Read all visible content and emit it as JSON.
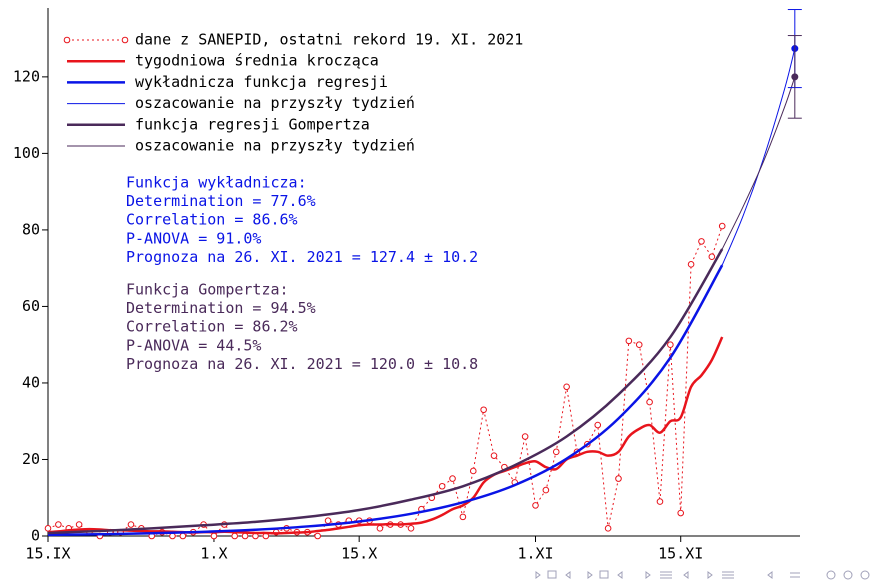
{
  "chart_data": {
    "type": "line",
    "xlim": [
      0,
      72.5
    ],
    "ylim": [
      0,
      138
    ],
    "xticks": [
      {
        "value": 0,
        "label": "15.IX"
      },
      {
        "value": 16,
        "label": "1.X"
      },
      {
        "value": 30,
        "label": "15.X"
      },
      {
        "value": 47,
        "label": "1.XI"
      },
      {
        "value": 61,
        "label": "15.XI"
      }
    ],
    "yticks": [
      0,
      20,
      40,
      60,
      80,
      100,
      120
    ],
    "series": [
      {
        "name": "dane z SANEPID, ostatni rekord 19. XI. 2021",
        "color": "#e8141c",
        "style": "dotted-markers",
        "x": [
          0,
          1,
          2,
          3,
          4,
          5,
          6,
          7,
          8,
          9,
          10,
          11,
          12,
          13,
          14,
          15,
          16,
          17,
          18,
          19,
          20,
          21,
          22,
          23,
          24,
          25,
          26,
          27,
          28,
          29,
          30,
          31,
          32,
          33,
          34,
          35,
          36,
          37,
          38,
          39,
          40,
          41,
          42,
          43,
          44,
          45,
          46,
          47,
          48,
          49,
          50,
          51,
          52,
          53,
          54,
          55,
          56,
          57,
          58,
          59,
          60,
          61,
          62,
          63,
          64,
          65
        ],
        "values": [
          2,
          3,
          2,
          3,
          1,
          0,
          1,
          1,
          3,
          2,
          0,
          1,
          0,
          0,
          1,
          3,
          0,
          3,
          0,
          0,
          0,
          0,
          1,
          2,
          1,
          1,
          0,
          4,
          3,
          4,
          4,
          4,
          2,
          3,
          3,
          2,
          7,
          10,
          13,
          15,
          5,
          17,
          33,
          21,
          18,
          14,
          26,
          8,
          12,
          22,
          39,
          22,
          24,
          29,
          2,
          15,
          51,
          50,
          35,
          9,
          50,
          6,
          71,
          77,
          73,
          81
        ]
      },
      {
        "name": "tygodniowa średnia krocząca",
        "color": "#e8141c",
        "style": "thick",
        "x": [
          0,
          1,
          2,
          3,
          4,
          5,
          6,
          7,
          8,
          9,
          10,
          11,
          12,
          13,
          14,
          15,
          16,
          17,
          18,
          19,
          20,
          21,
          22,
          23,
          24,
          25,
          26,
          27,
          28,
          29,
          30,
          31,
          32,
          33,
          34,
          35,
          36,
          37,
          38,
          39,
          40,
          41,
          42,
          43,
          44,
          45,
          46,
          47,
          48,
          49,
          50,
          51,
          52,
          53,
          54,
          55,
          56,
          57,
          58,
          59,
          60,
          61,
          62,
          63,
          64,
          65
        ],
        "values": [
          1,
          1.2,
          1.5,
          1.7,
          1.8,
          1.7,
          1.5,
          1.5,
          1.4,
          1.3,
          1.2,
          1.2,
          1.1,
          1,
          0.9,
          1,
          1,
          1.1,
          1,
          0.9,
          0.8,
          0.8,
          0.7,
          0.8,
          0.9,
          1,
          1.3,
          1.6,
          2,
          2.4,
          2.8,
          3,
          3,
          3.1,
          3,
          3.2,
          3.5,
          4.3,
          5.5,
          7,
          8,
          10,
          14,
          16,
          17,
          18,
          19,
          19.5,
          18,
          17.5,
          20,
          21,
          22,
          22,
          21,
          22,
          26,
          28,
          29,
          27,
          30,
          31,
          39,
          42,
          46,
          52
        ]
      },
      {
        "name": "wykładnicza funkcja regresji",
        "color": "#0a14e6",
        "style": "thick",
        "x": [
          0,
          5,
          10,
          15,
          20,
          25,
          30,
          35,
          40,
          45,
          50,
          55,
          60,
          65
        ],
        "values": [
          0.31,
          0.47,
          0.71,
          1.09,
          1.64,
          2.5,
          3.8,
          5.8,
          8.8,
          13.3,
          20.2,
          30.7,
          46.6,
          70.8
        ]
      },
      {
        "name": "oszacowanie na przyszły tydzień",
        "color": "#0a14e6",
        "style": "thin",
        "x": [
          65,
          67,
          69,
          71,
          72
        ],
        "values": [
          70.8,
          83.6,
          98.8,
          116.7,
          127.4
        ]
      },
      {
        "name": "funkcja regresji Gompertza",
        "color": "#4a2a5a",
        "style": "thick",
        "x": [
          0,
          5,
          10,
          15,
          20,
          25,
          30,
          35,
          40,
          45,
          50,
          55,
          60,
          65
        ],
        "values": [
          0.8,
          1.3,
          2,
          2.8,
          3.7,
          5,
          6.8,
          9.5,
          13,
          18.5,
          26,
          37,
          52,
          75
        ]
      },
      {
        "name": "oszacowanie na przyszły tydzień",
        "color": "#4a2a5a",
        "style": "thin",
        "x": [
          65,
          67,
          69,
          71,
          72
        ],
        "values": [
          75,
          86,
          98,
          112,
          120
        ]
      }
    ],
    "forecast_points": [
      {
        "x": 72,
        "value": 127.4,
        "error": 10.2,
        "color": "#0a14e6"
      },
      {
        "x": 72,
        "value": 120.0,
        "error": 10.8,
        "color": "#4a2a5a"
      }
    ],
    "annotations": [
      {
        "color": "#0a14e6",
        "lines": [
          "Funkcja wykładnicza:",
          "Determination = 77.6%",
          "Correlation = 86.6%",
          "P-ANOVA = 91.0%",
          "Prognoza na 26. XI. 2021 = 127.4 ± 10.2"
        ]
      },
      {
        "color": "#4a2a5a",
        "lines": [
          "Funkcja Gompertza:",
          "Determination = 94.5%",
          "Correlation = 86.2%",
          "P-ANOVA = 44.5%",
          "Prognoza na 26. XI. 2021 = 120.0 ± 10.8"
        ]
      }
    ]
  }
}
